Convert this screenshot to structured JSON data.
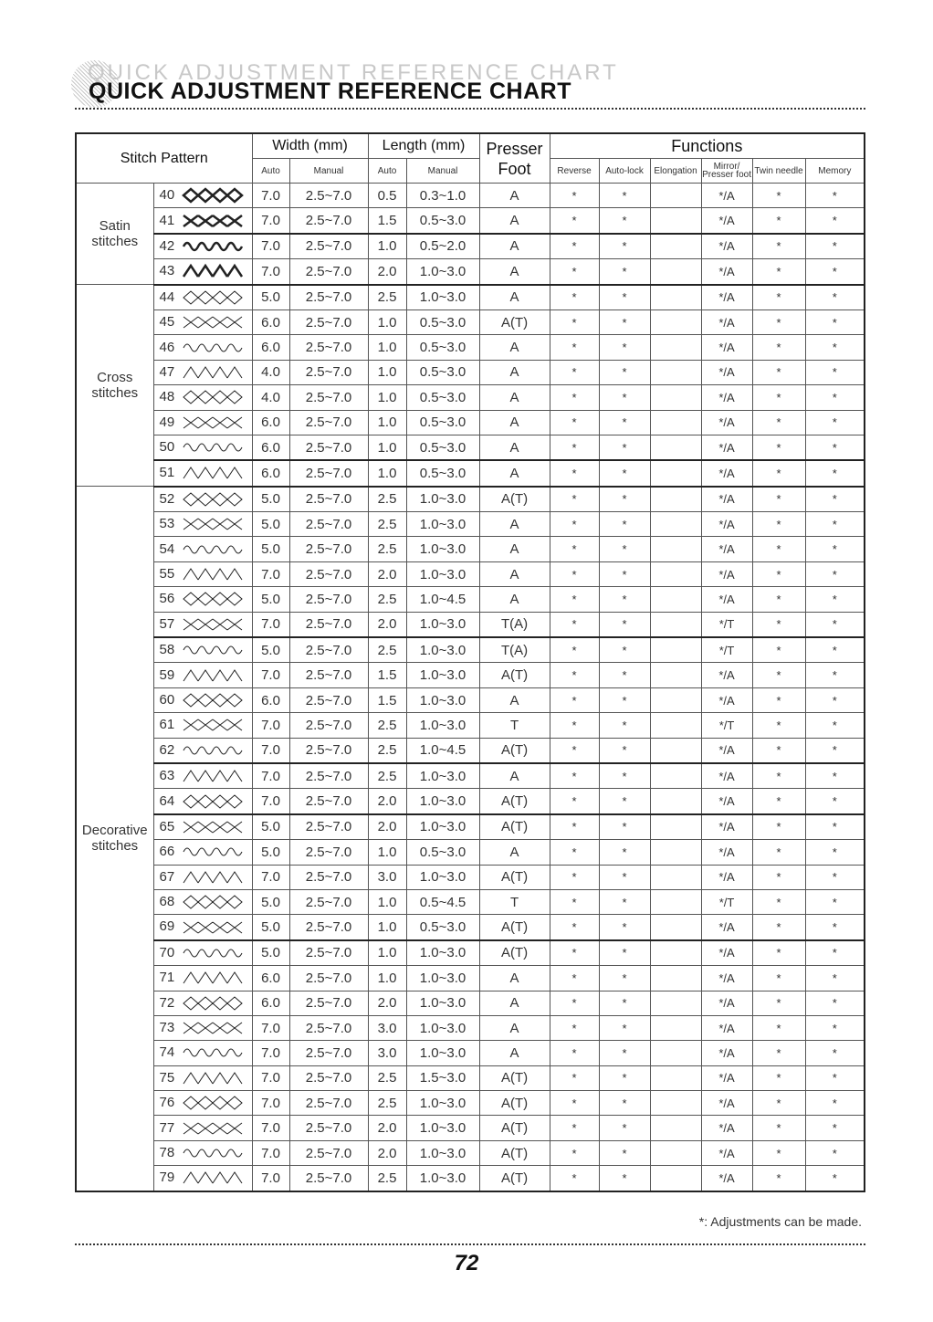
{
  "title": "QUICK ADJUSTMENT REFERENCE CHART",
  "header": {
    "stitch_pattern": "Stitch Pattern",
    "width": "Width (mm)",
    "length": "Length (mm)",
    "presser": "Presser",
    "foot": "Foot",
    "functions": "Functions",
    "auto": "Auto",
    "manual": "Manual",
    "reverse": "Reverse",
    "autolock": "Auto-lock",
    "elongation": "Elongation",
    "mirror": "Mirror/",
    "presser_foot": "Presser foot",
    "twin_needle": "Twin needle",
    "memory": "Memory"
  },
  "categories": [
    {
      "label": "Satin stitches",
      "count": 4
    },
    {
      "label": "Cross stitches",
      "count": 8
    },
    {
      "label": "Decorative stitches",
      "count": 28
    }
  ],
  "rows": [
    [
      "40",
      "7.0",
      "2.5~7.0",
      "0.5",
      "0.3~1.0",
      "A",
      "*",
      "*",
      "",
      "*/A",
      "*",
      "*"
    ],
    [
      "41",
      "7.0",
      "2.5~7.0",
      "1.5",
      "0.5~3.0",
      "A",
      "*",
      "*",
      "",
      "*/A",
      "*",
      "*"
    ],
    [
      "42",
      "7.0",
      "2.5~7.0",
      "1.0",
      "0.5~2.0",
      "A",
      "*",
      "*",
      "",
      "*/A",
      "*",
      "*"
    ],
    [
      "43",
      "7.0",
      "2.5~7.0",
      "2.0",
      "1.0~3.0",
      "A",
      "*",
      "*",
      "",
      "*/A",
      "*",
      "*"
    ],
    [
      "44",
      "5.0",
      "2.5~7.0",
      "2.5",
      "1.0~3.0",
      "A",
      "*",
      "*",
      "",
      "*/A",
      "*",
      "*"
    ],
    [
      "45",
      "6.0",
      "2.5~7.0",
      "1.0",
      "0.5~3.0",
      "A(T)",
      "*",
      "*",
      "",
      "*/A",
      "*",
      "*"
    ],
    [
      "46",
      "6.0",
      "2.5~7.0",
      "1.0",
      "0.5~3.0",
      "A",
      "*",
      "*",
      "",
      "*/A",
      "*",
      "*"
    ],
    [
      "47",
      "4.0",
      "2.5~7.0",
      "1.0",
      "0.5~3.0",
      "A",
      "*",
      "*",
      "",
      "*/A",
      "*",
      "*"
    ],
    [
      "48",
      "4.0",
      "2.5~7.0",
      "1.0",
      "0.5~3.0",
      "A",
      "*",
      "*",
      "",
      "*/A",
      "*",
      "*"
    ],
    [
      "49",
      "6.0",
      "2.5~7.0",
      "1.0",
      "0.5~3.0",
      "A",
      "*",
      "*",
      "",
      "*/A",
      "*",
      "*"
    ],
    [
      "50",
      "6.0",
      "2.5~7.0",
      "1.0",
      "0.5~3.0",
      "A",
      "*",
      "*",
      "",
      "*/A",
      "*",
      "*"
    ],
    [
      "51",
      "6.0",
      "2.5~7.0",
      "1.0",
      "0.5~3.0",
      "A",
      "*",
      "*",
      "",
      "*/A",
      "*",
      "*"
    ],
    [
      "52",
      "5.0",
      "2.5~7.0",
      "2.5",
      "1.0~3.0",
      "A(T)",
      "*",
      "*",
      "",
      "*/A",
      "*",
      "*"
    ],
    [
      "53",
      "5.0",
      "2.5~7.0",
      "2.5",
      "1.0~3.0",
      "A",
      "*",
      "*",
      "",
      "*/A",
      "*",
      "*"
    ],
    [
      "54",
      "5.0",
      "2.5~7.0",
      "2.5",
      "1.0~3.0",
      "A",
      "*",
      "*",
      "",
      "*/A",
      "*",
      "*"
    ],
    [
      "55",
      "7.0",
      "2.5~7.0",
      "2.0",
      "1.0~3.0",
      "A",
      "*",
      "*",
      "",
      "*/A",
      "*",
      "*"
    ],
    [
      "56",
      "5.0",
      "2.5~7.0",
      "2.5",
      "1.0~4.5",
      "A",
      "*",
      "*",
      "",
      "*/A",
      "*",
      "*"
    ],
    [
      "57",
      "7.0",
      "2.5~7.0",
      "2.0",
      "1.0~3.0",
      "T(A)",
      "*",
      "*",
      "",
      "*/T",
      "*",
      "*"
    ],
    [
      "58",
      "5.0",
      "2.5~7.0",
      "2.5",
      "1.0~3.0",
      "T(A)",
      "*",
      "*",
      "",
      "*/T",
      "*",
      "*"
    ],
    [
      "59",
      "7.0",
      "2.5~7.0",
      "1.5",
      "1.0~3.0",
      "A(T)",
      "*",
      "*",
      "",
      "*/A",
      "*",
      "*"
    ],
    [
      "60",
      "6.0",
      "2.5~7.0",
      "1.5",
      "1.0~3.0",
      "A",
      "*",
      "*",
      "",
      "*/A",
      "*",
      "*"
    ],
    [
      "61",
      "7.0",
      "2.5~7.0",
      "2.5",
      "1.0~3.0",
      "T",
      "*",
      "*",
      "",
      "*/T",
      "*",
      "*"
    ],
    [
      "62",
      "7.0",
      "2.5~7.0",
      "2.5",
      "1.0~4.5",
      "A(T)",
      "*",
      "*",
      "",
      "*/A",
      "*",
      "*"
    ],
    [
      "63",
      "7.0",
      "2.5~7.0",
      "2.5",
      "1.0~3.0",
      "A",
      "*",
      "*",
      "",
      "*/A",
      "*",
      "*"
    ],
    [
      "64",
      "7.0",
      "2.5~7.0",
      "2.0",
      "1.0~3.0",
      "A(T)",
      "*",
      "*",
      "",
      "*/A",
      "*",
      "*"
    ],
    [
      "65",
      "5.0",
      "2.5~7.0",
      "2.0",
      "1.0~3.0",
      "A(T)",
      "*",
      "*",
      "",
      "*/A",
      "*",
      "*"
    ],
    [
      "66",
      "5.0",
      "2.5~7.0",
      "1.0",
      "0.5~3.0",
      "A",
      "*",
      "*",
      "",
      "*/A",
      "*",
      "*"
    ],
    [
      "67",
      "7.0",
      "2.5~7.0",
      "3.0",
      "1.0~3.0",
      "A(T)",
      "*",
      "*",
      "",
      "*/A",
      "*",
      "*"
    ],
    [
      "68",
      "5.0",
      "2.5~7.0",
      "1.0",
      "0.5~4.5",
      "T",
      "*",
      "*",
      "",
      "*/T",
      "*",
      "*"
    ],
    [
      "69",
      "5.0",
      "2.5~7.0",
      "1.0",
      "0.5~3.0",
      "A(T)",
      "*",
      "*",
      "",
      "*/A",
      "*",
      "*"
    ],
    [
      "70",
      "5.0",
      "2.5~7.0",
      "1.0",
      "1.0~3.0",
      "A(T)",
      "*",
      "*",
      "",
      "*/A",
      "*",
      "*"
    ],
    [
      "71",
      "6.0",
      "2.5~7.0",
      "1.0",
      "1.0~3.0",
      "A",
      "*",
      "*",
      "",
      "*/A",
      "*",
      "*"
    ],
    [
      "72",
      "6.0",
      "2.5~7.0",
      "2.0",
      "1.0~3.0",
      "A",
      "*",
      "*",
      "",
      "*/A",
      "*",
      "*"
    ],
    [
      "73",
      "7.0",
      "2.5~7.0",
      "3.0",
      "1.0~3.0",
      "A",
      "*",
      "*",
      "",
      "*/A",
      "*",
      "*"
    ],
    [
      "74",
      "7.0",
      "2.5~7.0",
      "3.0",
      "1.0~3.0",
      "A",
      "*",
      "*",
      "",
      "*/A",
      "*",
      "*"
    ],
    [
      "75",
      "7.0",
      "2.5~7.0",
      "2.5",
      "1.5~3.0",
      "A(T)",
      "*",
      "*",
      "",
      "*/A",
      "*",
      "*"
    ],
    [
      "76",
      "7.0",
      "2.5~7.0",
      "2.5",
      "1.0~3.0",
      "A(T)",
      "*",
      "*",
      "",
      "*/A",
      "*",
      "*"
    ],
    [
      "77",
      "7.0",
      "2.5~7.0",
      "2.0",
      "1.0~3.0",
      "A(T)",
      "*",
      "*",
      "",
      "*/A",
      "*",
      "*"
    ],
    [
      "78",
      "7.0",
      "2.5~7.0",
      "2.0",
      "1.0~3.0",
      "A(T)",
      "*",
      "*",
      "",
      "*/A",
      "*",
      "*"
    ],
    [
      "79",
      "7.0",
      "2.5~7.0",
      "2.5",
      "1.0~3.0",
      "A(T)",
      "*",
      "*",
      "",
      "*/A",
      "*",
      "*"
    ]
  ],
  "footnote": "*: Adjustments can be made.",
  "page_number": "72"
}
